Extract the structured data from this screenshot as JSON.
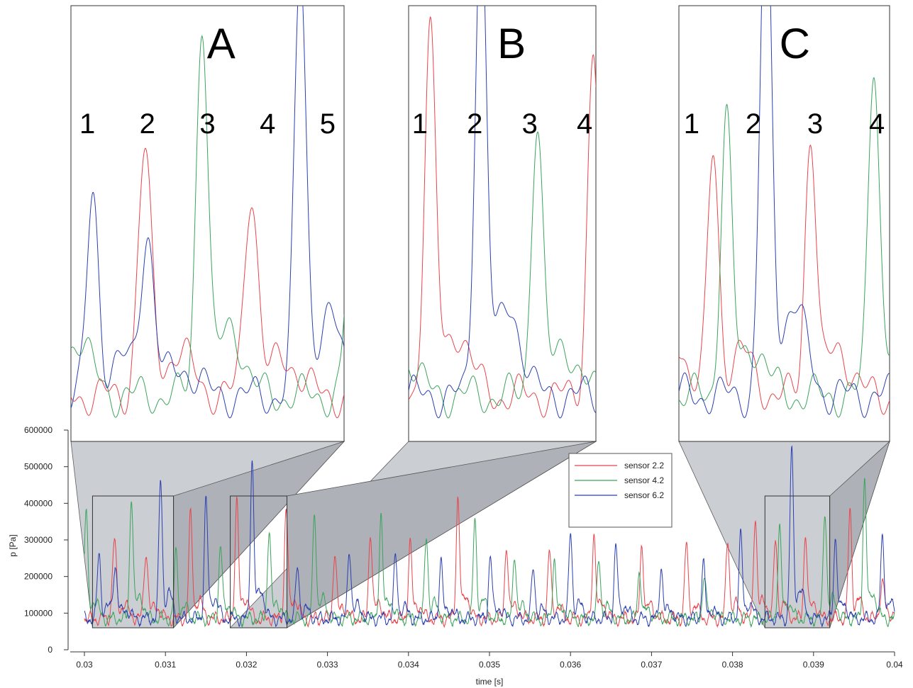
{
  "chart_data": {
    "type": "line",
    "xlabel": "time [s]",
    "ylabel": "p [Pa]",
    "xlim": [
      0.03,
      0.04
    ],
    "ylim": [
      0,
      600000
    ],
    "x_ticks": [
      "0.03",
      "0.031",
      "0.032",
      "0.033",
      "0.034",
      "0.035",
      "0.036",
      "0.037",
      "0.038",
      "0.039",
      "0.04"
    ],
    "y_ticks": [
      "0",
      "100000",
      "200000",
      "300000",
      "400000",
      "500000",
      "600000"
    ],
    "legend_position": "upper-center-right",
    "series": [
      {
        "name": "sensor 2.2",
        "color": "#e8444c",
        "peaks": [
          {
            "t": 0.03037,
            "p": 295000,
            "w": 3.5e-05
          },
          {
            "t": 0.03076,
            "p": 265000,
            "w": 3.5e-05
          },
          {
            "t": 0.03131,
            "p": 365000,
            "w": 3e-05
          },
          {
            "t": 0.03188,
            "p": 405000,
            "w": 3e-05
          },
          {
            "t": 0.03249,
            "p": 385000,
            "w": 3e-05
          },
          {
            "t": 0.03309,
            "p": 265000,
            "w": 3e-05
          },
          {
            "t": 0.03353,
            "p": 320000,
            "w": 3e-05
          },
          {
            "t": 0.03402,
            "p": 295000,
            "w": 3e-05
          },
          {
            "t": 0.03461,
            "p": 415000,
            "w": 3e-05
          },
          {
            "t": 0.03521,
            "p": 285000,
            "w": 3e-05
          },
          {
            "t": 0.03574,
            "p": 265000,
            "w": 3e-05
          },
          {
            "t": 0.03629,
            "p": 315000,
            "w": 3e-05
          },
          {
            "t": 0.03688,
            "p": 285000,
            "w": 3e-05
          },
          {
            "t": 0.03743,
            "p": 285000,
            "w": 3e-05
          },
          {
            "t": 0.03794,
            "p": 300000,
            "w": 3e-05
          },
          {
            "t": 0.03828,
            "p": 360000,
            "w": 3e-05
          },
          {
            "t": 0.03853,
            "p": 295000,
            "w": 3e-05
          },
          {
            "t": 0.0389,
            "p": 315000,
            "w": 3e-05
          },
          {
            "t": 0.03945,
            "p": 375000,
            "w": 3e-05
          },
          {
            "t": 0.03985,
            "p": 180000,
            "w": 4e-05
          }
        ]
      },
      {
        "name": "sensor 4.2",
        "color": "#3ca35c",
        "peaks": [
          {
            "t": 0.03002,
            "p": 370000,
            "w": 3e-05
          },
          {
            "t": 0.03058,
            "p": 415000,
            "w": 3e-05
          },
          {
            "t": 0.03113,
            "p": 265000,
            "w": 3e-05
          },
          {
            "t": 0.03168,
            "p": 285000,
            "w": 3e-05
          },
          {
            "t": 0.03228,
            "p": 325000,
            "w": 3e-05
          },
          {
            "t": 0.03284,
            "p": 370000,
            "w": 3e-05
          },
          {
            "t": 0.03366,
            "p": 365000,
            "w": 3e-05
          },
          {
            "t": 0.03422,
            "p": 310000,
            "w": 3e-05
          },
          {
            "t": 0.03482,
            "p": 350000,
            "w": 3e-05
          },
          {
            "t": 0.03531,
            "p": 260000,
            "w": 3e-05
          },
          {
            "t": 0.0358,
            "p": 245000,
            "w": 3e-05
          },
          {
            "t": 0.03635,
            "p": 245000,
            "w": 3e-05
          },
          {
            "t": 0.03685,
            "p": 215000,
            "w": 3e-05
          },
          {
            "t": 0.03765,
            "p": 205000,
            "w": 3e-05
          },
          {
            "t": 0.03858,
            "p": 330000,
            "w": 3e-05
          },
          {
            "t": 0.03914,
            "p": 380000,
            "w": 3e-05
          },
          {
            "t": 0.03963,
            "p": 465000,
            "w": 3e-05
          }
        ]
      },
      {
        "name": "sensor 6.2",
        "color": "#2b3fb0",
        "peaks": [
          {
            "t": 0.03018,
            "p": 260000,
            "w": 3e-05
          },
          {
            "t": 0.03038,
            "p": 225000,
            "w": 3.5e-05
          },
          {
            "t": 0.03094,
            "p": 460000,
            "w": 3e-05
          },
          {
            "t": 0.0315,
            "p": 405000,
            "w": 3e-05
          },
          {
            "t": 0.03207,
            "p": 515000,
            "w": 3e-05
          },
          {
            "t": 0.03263,
            "p": 225000,
            "w": 3e-05
          },
          {
            "t": 0.03327,
            "p": 275000,
            "w": 3e-05
          },
          {
            "t": 0.03384,
            "p": 250000,
            "w": 3e-05
          },
          {
            "t": 0.0344,
            "p": 240000,
            "w": 3e-05
          },
          {
            "t": 0.03501,
            "p": 255000,
            "w": 3e-05
          },
          {
            "t": 0.03554,
            "p": 220000,
            "w": 3e-05
          },
          {
            "t": 0.036,
            "p": 315000,
            "w": 3e-05
          },
          {
            "t": 0.03656,
            "p": 280000,
            "w": 3e-05
          },
          {
            "t": 0.03712,
            "p": 225000,
            "w": 3e-05
          },
          {
            "t": 0.03764,
            "p": 230000,
            "w": 3e-05
          },
          {
            "t": 0.0381,
            "p": 310000,
            "w": 3e-05
          },
          {
            "t": 0.03873,
            "p": 540000,
            "w": 3e-05
          },
          {
            "t": 0.03927,
            "p": 305000,
            "w": 3e-05
          },
          {
            "t": 0.03985,
            "p": 310000,
            "w": 3e-05
          }
        ]
      }
    ],
    "insets": [
      {
        "label": "A",
        "numbers": [
          "1",
          "2",
          "3",
          "4",
          "5"
        ],
        "t_range": [
          0.0301,
          0.0311
        ],
        "p_range": [
          60000,
          420000
        ]
      },
      {
        "label": "B",
        "numbers": [
          "1",
          "2",
          "3",
          "4"
        ],
        "t_range": [
          0.0318,
          0.0325
        ],
        "p_range": [
          60000,
          420000
        ]
      },
      {
        "label": "C",
        "numbers": [
          "1",
          "2",
          "3",
          "4"
        ],
        "t_range": [
          0.0384,
          0.0392
        ],
        "p_range": [
          60000,
          420000
        ]
      }
    ]
  }
}
